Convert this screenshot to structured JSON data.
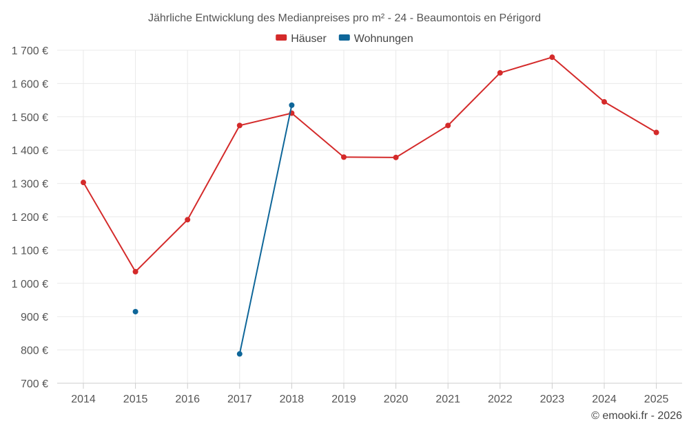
{
  "chart_data": {
    "type": "line",
    "title": "Jährliche Entwicklung des Medianpreises pro m² - 24 - Beaumontois en Périgord",
    "xlabel": "",
    "ylabel": "",
    "categories": [
      "2014",
      "2015",
      "2016",
      "2017",
      "2018",
      "2019",
      "2020",
      "2021",
      "2022",
      "2023",
      "2024",
      "2025"
    ],
    "y_ticks": [
      {
        "value": 700,
        "label": "700 €"
      },
      {
        "value": 800,
        "label": "800 €"
      },
      {
        "value": 900,
        "label": "900 €"
      },
      {
        "value": 1000,
        "label": "1 000 €"
      },
      {
        "value": 1100,
        "label": "1 100 €"
      },
      {
        "value": 1200,
        "label": "1 200 €"
      },
      {
        "value": 1300,
        "label": "1 300 €"
      },
      {
        "value": 1400,
        "label": "1 400 €"
      },
      {
        "value": 1500,
        "label": "1 500 €"
      },
      {
        "value": 1600,
        "label": "1 600 €"
      },
      {
        "value": 1700,
        "label": "1 700 €"
      }
    ],
    "ylim": [
      700,
      1700
    ],
    "grid": true,
    "legend_position": "top-center",
    "series": [
      {
        "name": "Häuser",
        "color": "#d42a2a",
        "values": [
          1303,
          1035,
          1191,
          1474,
          1511,
          1379,
          1378,
          1474,
          1632,
          1679,
          1545,
          1453
        ]
      },
      {
        "name": "Wohnungen",
        "color": "#0e6699",
        "values": [
          null,
          915,
          null,
          788,
          1535,
          null,
          null,
          null,
          null,
          null,
          null,
          null
        ]
      }
    ],
    "credit": "© emooki.fr - 2026"
  }
}
